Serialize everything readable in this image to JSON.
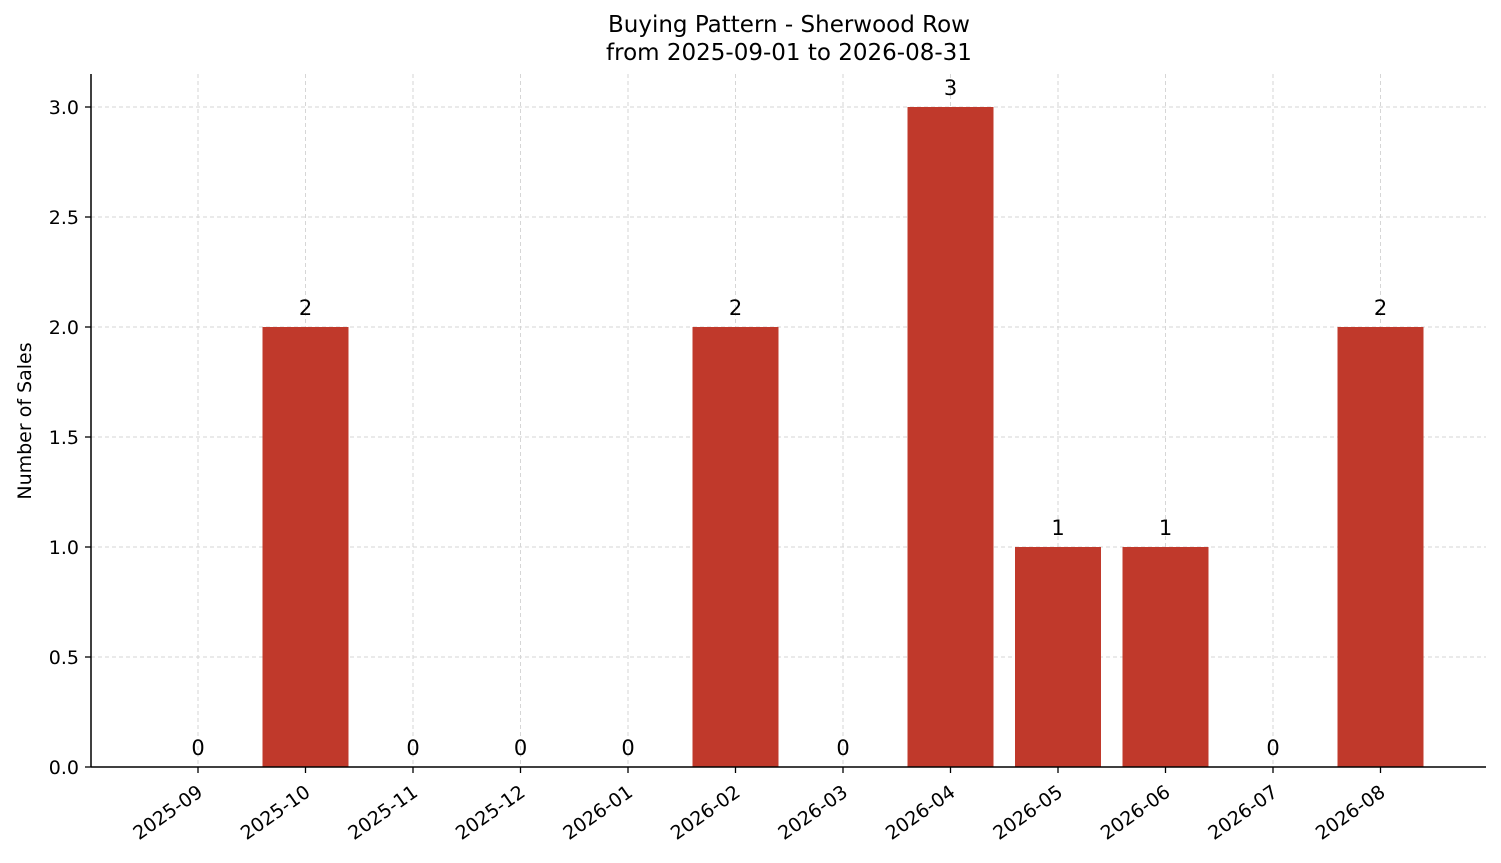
{
  "chart_data": {
    "type": "bar",
    "title": "Buying Pattern - Sherwood Row",
    "subtitle": "from 2025-09-01 to 2026-08-31",
    "xlabel": "",
    "ylabel": "Number of Sales",
    "categories": [
      "2025-09",
      "2025-10",
      "2025-11",
      "2025-12",
      "2026-01",
      "2026-02",
      "2026-03",
      "2026-04",
      "2026-05",
      "2026-06",
      "2026-07",
      "2026-08"
    ],
    "values": [
      0,
      2,
      0,
      0,
      0,
      2,
      0,
      3,
      1,
      1,
      0,
      2
    ],
    "ylim": [
      0,
      3.15
    ],
    "yticks": [
      "0.0",
      "0.5",
      "1.0",
      "1.5",
      "2.0",
      "2.5",
      "3.0"
    ],
    "grid": true,
    "bar_color": "#c0392b"
  }
}
